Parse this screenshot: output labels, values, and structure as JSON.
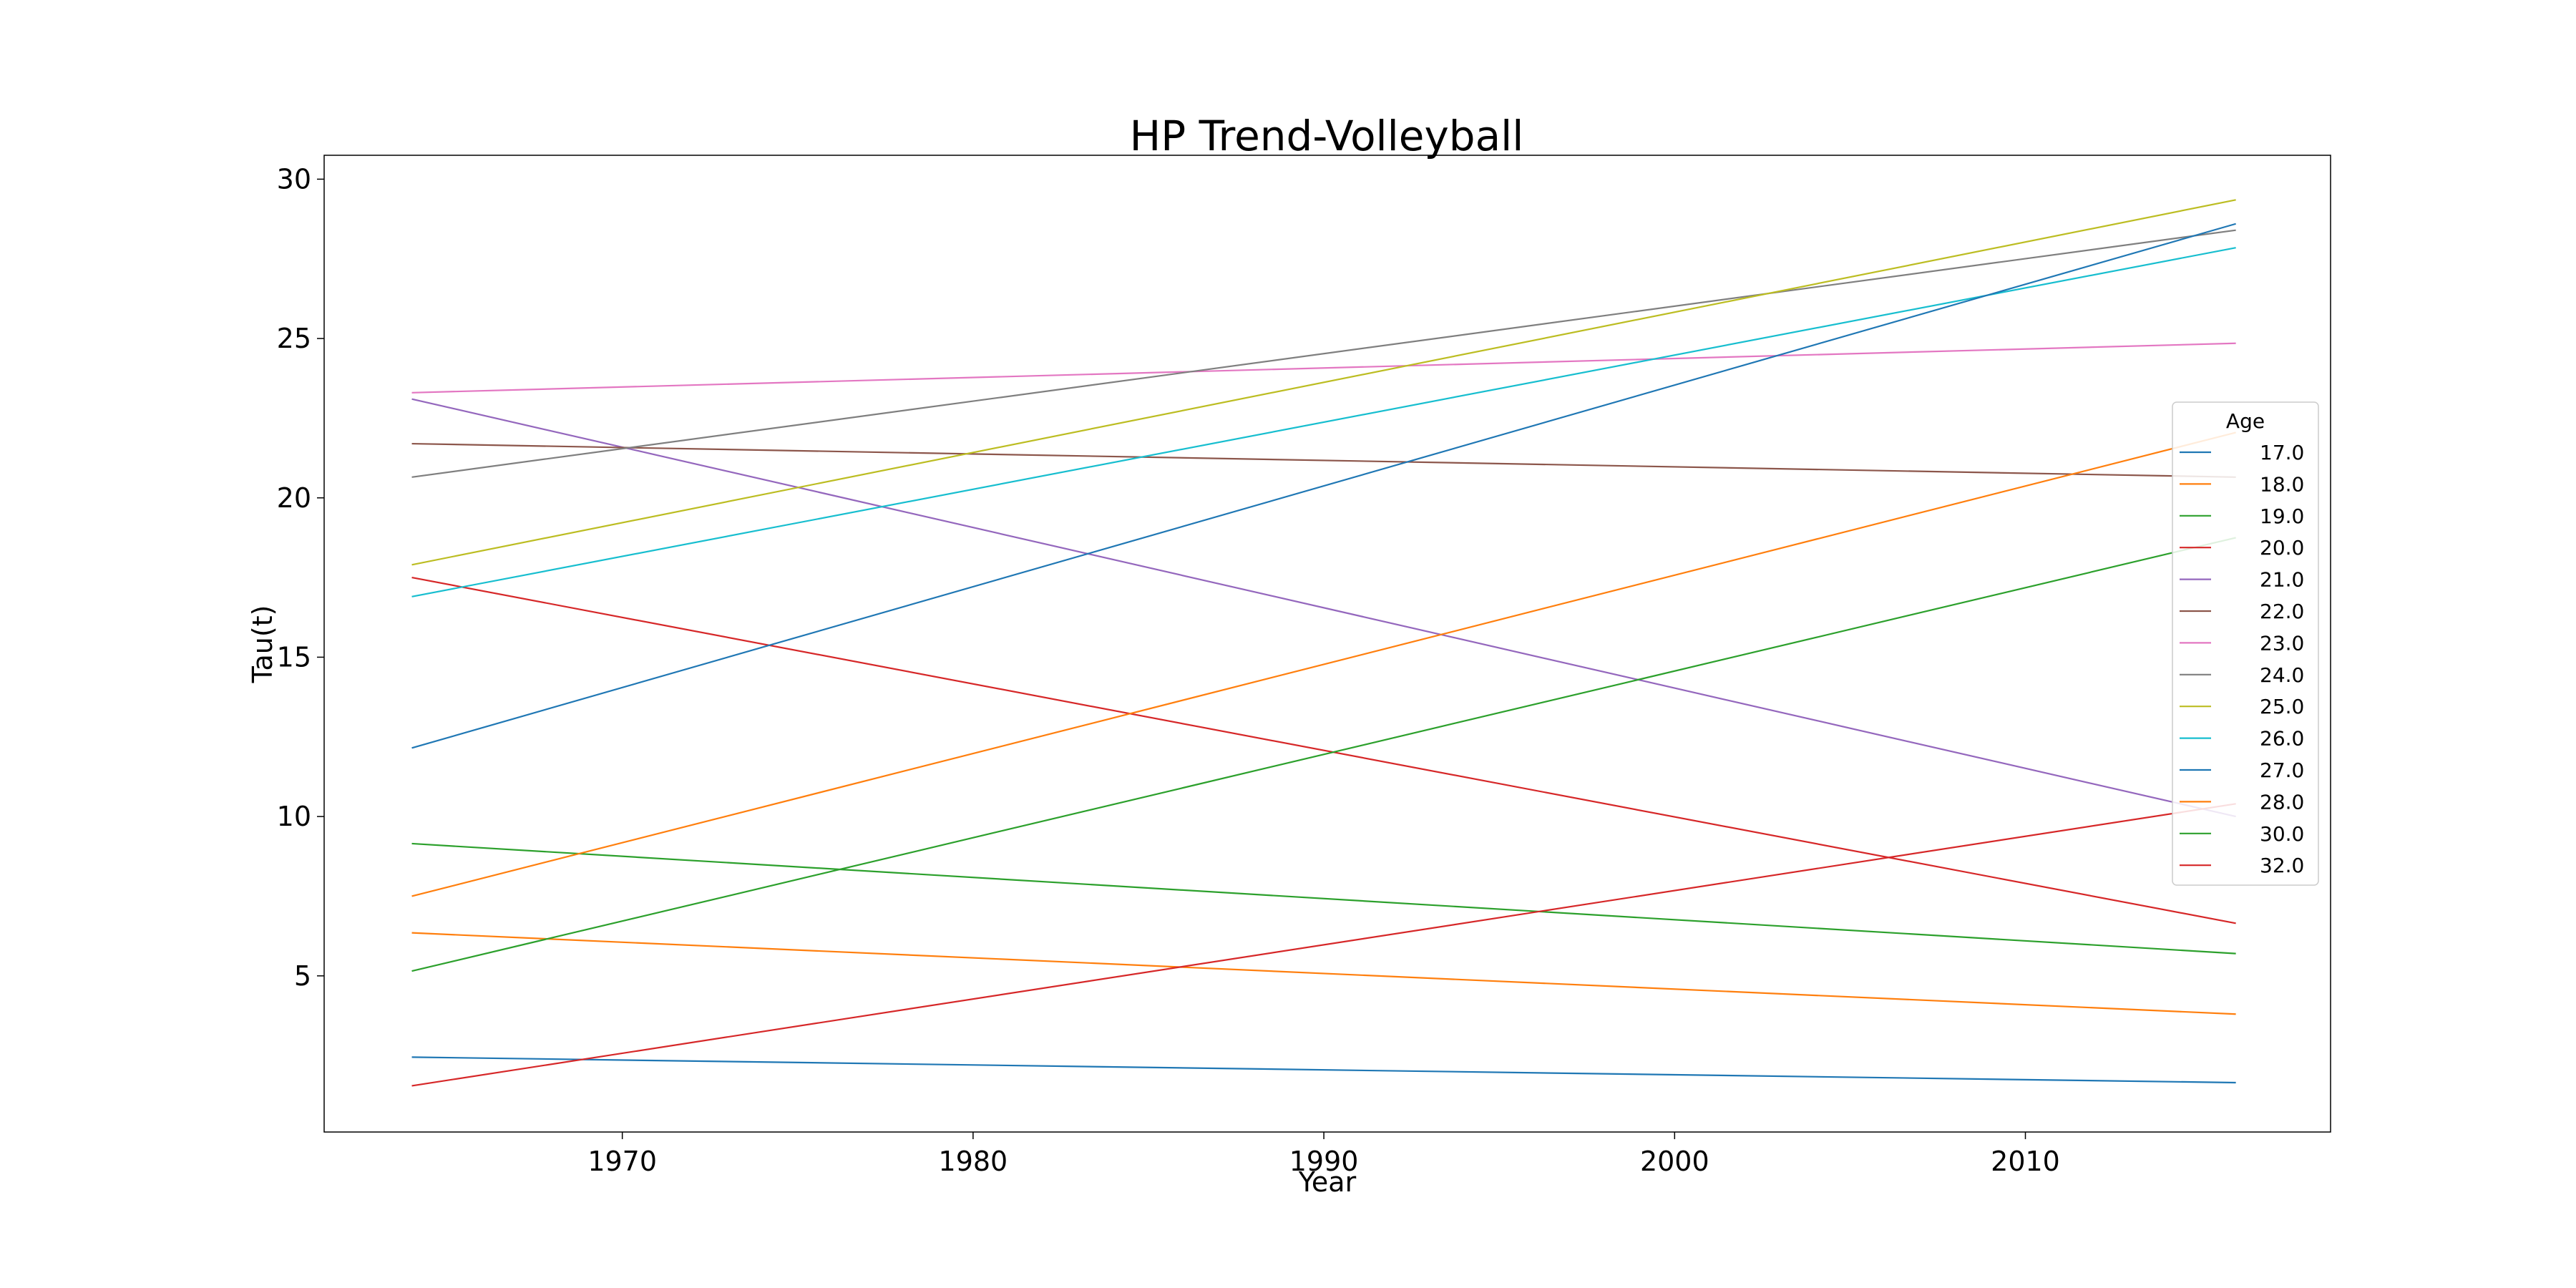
{
  "chart_data": {
    "type": "line",
    "title": "HP Trend-Volleyball",
    "xlabel": "Year",
    "ylabel": "Tau(t)",
    "xlim": [
      1961.5,
      2018.7
    ],
    "ylim": [
      0.1,
      30.75
    ],
    "xticks": [
      1970,
      1980,
      1990,
      2000,
      2010
    ],
    "yticks": [
      5,
      10,
      15,
      20,
      25,
      30
    ],
    "grid": false,
    "legend": {
      "title": "Age",
      "position": "right"
    },
    "x": [
      1964,
      2016
    ],
    "series": [
      {
        "name": "17.0",
        "color": "#1f77b4",
        "values": [
          2.45,
          1.65
        ]
      },
      {
        "name": "18.0",
        "color": "#ff7f0e",
        "values": [
          6.35,
          3.8
        ]
      },
      {
        "name": "19.0",
        "color": "#2ca02c",
        "values": [
          9.15,
          5.7
        ]
      },
      {
        "name": "20.0",
        "color": "#d62728",
        "values": [
          17.5,
          6.65
        ]
      },
      {
        "name": "21.0",
        "color": "#9467bd",
        "values": [
          23.1,
          10.0
        ]
      },
      {
        "name": "22.0",
        "color": "#8c564b",
        "values": [
          21.7,
          20.65
        ]
      },
      {
        "name": "23.0",
        "color": "#e377c2",
        "values": [
          23.3,
          24.85
        ]
      },
      {
        "name": "24.0",
        "color": "#7f7f7f",
        "values": [
          20.65,
          28.4
        ]
      },
      {
        "name": "25.0",
        "color": "#bcbd22",
        "values": [
          17.9,
          29.35
        ]
      },
      {
        "name": "26.0",
        "color": "#17becf",
        "values": [
          16.9,
          27.85
        ]
      },
      {
        "name": "27.0",
        "color": "#1f77b4",
        "values": [
          12.15,
          28.6
        ]
      },
      {
        "name": "28.0",
        "color": "#ff7f0e",
        "values": [
          7.5,
          22.05
        ]
      },
      {
        "name": "30.0",
        "color": "#2ca02c",
        "values": [
          5.15,
          18.75
        ]
      },
      {
        "name": "32.0",
        "color": "#d62728",
        "values": [
          1.55,
          10.4
        ]
      }
    ]
  }
}
